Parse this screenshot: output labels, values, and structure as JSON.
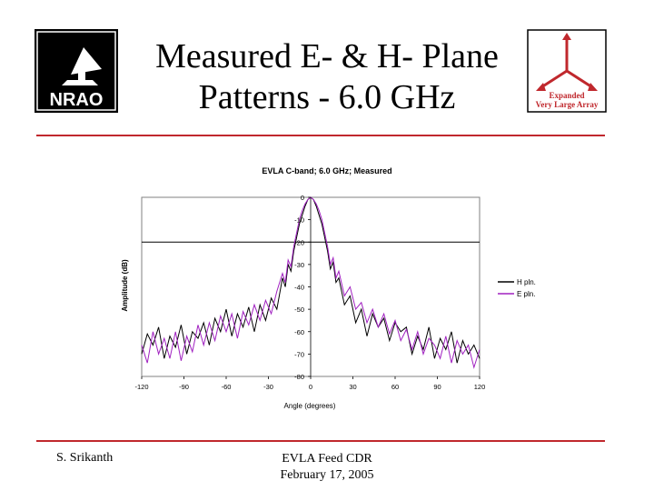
{
  "slide": {
    "title_line1": "Measured E- & H- Plane",
    "title_line2": "Patterns - 6.0 GHz",
    "logo_left_text": "NRAO",
    "logo_right_text_line1": "Expanded",
    "logo_right_text_line2": "Very Large Array",
    "footer_left": "S. Srikanth",
    "footer_center_line1": "EVLA Feed CDR",
    "footer_center_line2": "February 17, 2005"
  },
  "colors": {
    "accent_rule": "#c0282d",
    "h_plane": "#000000",
    "e_plane": "#a020c0"
  },
  "chart_data": {
    "type": "line",
    "title": "EVLA C-band; 6.0 GHz; Measured",
    "xlabel": "Angle (degrees)",
    "ylabel": "Amplitude (dB)",
    "xlim": [
      -120,
      120
    ],
    "ylim": [
      -80,
      0
    ],
    "x_ticks": [
      -120,
      -90,
      -60,
      -30,
      0,
      30,
      60,
      90,
      120
    ],
    "y_ticks": [
      0,
      -10,
      -20,
      -30,
      -40,
      -50,
      -60,
      -70,
      -80
    ],
    "reference_line_y": -20,
    "legend_position": "right",
    "series": [
      {
        "name": "H pln.",
        "points": [
          [
            -120,
            -70
          ],
          [
            -116,
            -61
          ],
          [
            -112,
            -66
          ],
          [
            -108,
            -58
          ],
          [
            -104,
            -72
          ],
          [
            -100,
            -62
          ],
          [
            -96,
            -67
          ],
          [
            -92,
            -57
          ],
          [
            -88,
            -70
          ],
          [
            -84,
            -60
          ],
          [
            -80,
            -63
          ],
          [
            -76,
            -56
          ],
          [
            -72,
            -66
          ],
          [
            -68,
            -54
          ],
          [
            -64,
            -60
          ],
          [
            -60,
            -50
          ],
          [
            -56,
            -62
          ],
          [
            -52,
            -52
          ],
          [
            -48,
            -58
          ],
          [
            -44,
            -49
          ],
          [
            -40,
            -60
          ],
          [
            -36,
            -48
          ],
          [
            -32,
            -55
          ],
          [
            -28,
            -45
          ],
          [
            -24,
            -50
          ],
          [
            -20,
            -36
          ],
          [
            -18,
            -40
          ],
          [
            -16,
            -30
          ],
          [
            -14,
            -33
          ],
          [
            -12,
            -24
          ],
          [
            -10,
            -18
          ],
          [
            -8,
            -12
          ],
          [
            -6,
            -8
          ],
          [
            -4,
            -4
          ],
          [
            -2,
            -1
          ],
          [
            0,
            0
          ],
          [
            2,
            -1
          ],
          [
            4,
            -4
          ],
          [
            6,
            -8
          ],
          [
            8,
            -12
          ],
          [
            10,
            -18
          ],
          [
            12,
            -24
          ],
          [
            14,
            -32
          ],
          [
            16,
            -29
          ],
          [
            18,
            -38
          ],
          [
            20,
            -36
          ],
          [
            24,
            -48
          ],
          [
            28,
            -44
          ],
          [
            32,
            -56
          ],
          [
            36,
            -50
          ],
          [
            40,
            -62
          ],
          [
            44,
            -52
          ],
          [
            48,
            -58
          ],
          [
            52,
            -54
          ],
          [
            56,
            -64
          ],
          [
            60,
            -56
          ],
          [
            64,
            -60
          ],
          [
            68,
            -58
          ],
          [
            72,
            -70
          ],
          [
            76,
            -62
          ],
          [
            80,
            -68
          ],
          [
            84,
            -58
          ],
          [
            88,
            -72
          ],
          [
            92,
            -63
          ],
          [
            96,
            -68
          ],
          [
            100,
            -60
          ],
          [
            104,
            -74
          ],
          [
            108,
            -64
          ],
          [
            112,
            -70
          ],
          [
            116,
            -66
          ],
          [
            120,
            -72
          ]
        ]
      },
      {
        "name": "E pln.",
        "points": [
          [
            -120,
            -66
          ],
          [
            -116,
            -74
          ],
          [
            -112,
            -60
          ],
          [
            -108,
            -70
          ],
          [
            -104,
            -63
          ],
          [
            -100,
            -72
          ],
          [
            -96,
            -60
          ],
          [
            -92,
            -73
          ],
          [
            -88,
            -62
          ],
          [
            -84,
            -69
          ],
          [
            -80,
            -57
          ],
          [
            -76,
            -66
          ],
          [
            -72,
            -56
          ],
          [
            -68,
            -64
          ],
          [
            -64,
            -53
          ],
          [
            -60,
            -60
          ],
          [
            -56,
            -52
          ],
          [
            -52,
            -63
          ],
          [
            -48,
            -51
          ],
          [
            -44,
            -57
          ],
          [
            -40,
            -48
          ],
          [
            -36,
            -55
          ],
          [
            -32,
            -46
          ],
          [
            -28,
            -52
          ],
          [
            -24,
            -42
          ],
          [
            -20,
            -34
          ],
          [
            -18,
            -38
          ],
          [
            -16,
            -28
          ],
          [
            -14,
            -31
          ],
          [
            -12,
            -22
          ],
          [
            -10,
            -16
          ],
          [
            -8,
            -10
          ],
          [
            -6,
            -6
          ],
          [
            -4,
            -3
          ],
          [
            -2,
            -1
          ],
          [
            0,
            0
          ],
          [
            2,
            -1
          ],
          [
            4,
            -3
          ],
          [
            6,
            -6
          ],
          [
            8,
            -10
          ],
          [
            10,
            -16
          ],
          [
            12,
            -22
          ],
          [
            14,
            -30
          ],
          [
            16,
            -27
          ],
          [
            18,
            -36
          ],
          [
            20,
            -33
          ],
          [
            24,
            -44
          ],
          [
            28,
            -40
          ],
          [
            32,
            -50
          ],
          [
            36,
            -47
          ],
          [
            40,
            -56
          ],
          [
            44,
            -50
          ],
          [
            48,
            -58
          ],
          [
            52,
            -52
          ],
          [
            56,
            -61
          ],
          [
            60,
            -55
          ],
          [
            64,
            -64
          ],
          [
            68,
            -59
          ],
          [
            72,
            -68
          ],
          [
            76,
            -60
          ],
          [
            80,
            -70
          ],
          [
            84,
            -63
          ],
          [
            88,
            -66
          ],
          [
            92,
            -72
          ],
          [
            96,
            -62
          ],
          [
            100,
            -74
          ],
          [
            104,
            -64
          ],
          [
            108,
            -70
          ],
          [
            112,
            -66
          ],
          [
            116,
            -76
          ],
          [
            120,
            -68
          ]
        ]
      }
    ]
  }
}
